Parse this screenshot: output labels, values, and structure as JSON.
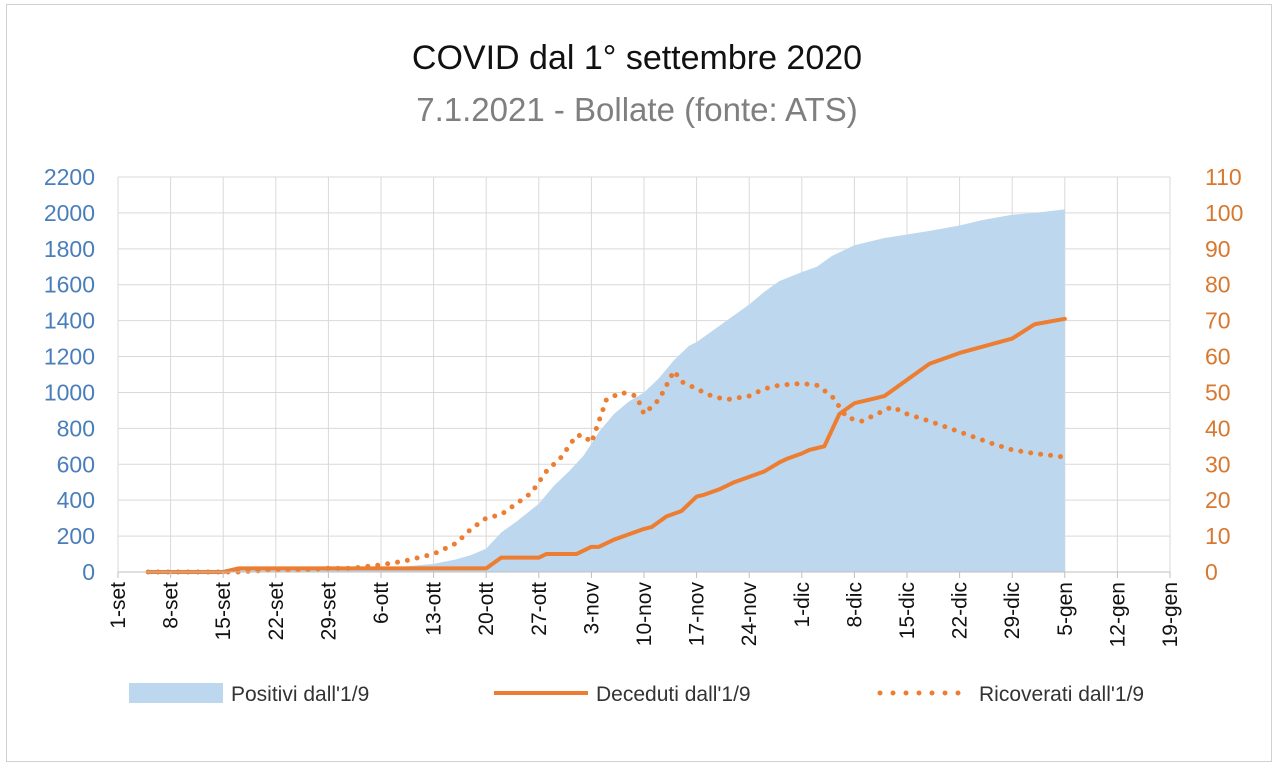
{
  "chart_data": {
    "type": "area",
    "title": "COVID dal 1° settembre 2020",
    "subtitle": "7.1.2021 - Bollate (fonte: ATS)",
    "x_unit": "days since 1-set",
    "xlim": [
      0,
      140
    ],
    "x_tick_positions": [
      0,
      7,
      14,
      21,
      28,
      35,
      42,
      49,
      56,
      63,
      70,
      77,
      84,
      91,
      98,
      105,
      112,
      119,
      126,
      133,
      140
    ],
    "x_tick_labels": [
      "1-set",
      "8-set",
      "15-set",
      "22-set",
      "29-set",
      "6-ott",
      "13-ott",
      "20-ott",
      "27-ott",
      "3-nov",
      "10-nov",
      "17-nov",
      "24-nov",
      "1-dic",
      "8-dic",
      "15-dic",
      "22-dic",
      "29-dic",
      "5-gen",
      "12-gen",
      "19-gen"
    ],
    "y_left": {
      "min": 0,
      "max": 2200,
      "step": 200,
      "ticks": [
        "0",
        "200",
        "400",
        "600",
        "800",
        "1000",
        "1200",
        "1400",
        "1600",
        "1800",
        "2000",
        "2200"
      ]
    },
    "y_right": {
      "min": 0,
      "max": 110,
      "step": 10,
      "ticks": [
        "0",
        "10",
        "20",
        "30",
        "40",
        "50",
        "60",
        "70",
        "80",
        "90",
        "100",
        "110"
      ]
    },
    "grid": true,
    "legend_position": "bottom",
    "series": [
      {
        "name": "Positivi dall'1/9",
        "type": "area",
        "axis": "left",
        "color": "#bdd7ee",
        "x": [
          4,
          7,
          10,
          14,
          17,
          21,
          24,
          28,
          31,
          35,
          38,
          42,
          45,
          47,
          49,
          51,
          53,
          56,
          58,
          60,
          62,
          64,
          66,
          68,
          70,
          72,
          74,
          76,
          77,
          79,
          81,
          84,
          86,
          88,
          91,
          93,
          95,
          98,
          100,
          102,
          105,
          108,
          112,
          115,
          119,
          122,
          126
        ],
        "y": [
          0,
          3,
          5,
          8,
          10,
          12,
          14,
          17,
          20,
          24,
          30,
          45,
          70,
          95,
          130,
          220,
          280,
          380,
          480,
          560,
          650,
          780,
          880,
          950,
          1000,
          1080,
          1180,
          1260,
          1280,
          1340,
          1400,
          1490,
          1560,
          1620,
          1670,
          1700,
          1760,
          1820,
          1840,
          1860,
          1880,
          1900,
          1930,
          1960,
          1990,
          2000,
          2020
        ]
      },
      {
        "name": "Deceduti dall'1/9",
        "type": "line",
        "axis": "right",
        "color": "#ed7d31",
        "x": [
          4,
          14,
          16,
          49,
          51,
          56,
          57,
          59,
          61,
          63,
          64,
          66,
          68,
          70,
          71,
          73,
          75,
          77,
          78,
          80,
          82,
          84,
          86,
          88,
          89,
          91,
          92,
          94,
          96,
          98,
          100,
          102,
          104,
          106,
          108,
          112,
          119,
          122,
          126
        ],
        "y": [
          0,
          0,
          1,
          1,
          4,
          4,
          5,
          5,
          5,
          7,
          7,
          9,
          10.5,
          12,
          12.5,
          15.5,
          17,
          21,
          21.5,
          23,
          25,
          26.5,
          28,
          30.5,
          31.5,
          33,
          34,
          35,
          44,
          47,
          48,
          49,
          52,
          55,
          58,
          61,
          65,
          69,
          70.5
        ]
      },
      {
        "name": "Ricoverati dall'1/9",
        "type": "line-dotted",
        "axis": "right",
        "color": "#ed7d31",
        "x": [
          4,
          8,
          12,
          16,
          20,
          24,
          28,
          31,
          35,
          38,
          42,
          45,
          47,
          49,
          51,
          53,
          55,
          57,
          59,
          61,
          62,
          63,
          64,
          65,
          67,
          69,
          70,
          72,
          74,
          75,
          77,
          79,
          81,
          84,
          86,
          88,
          91,
          93,
          95,
          97,
          99,
          101,
          103,
          105,
          108,
          112,
          116,
          119,
          122,
          126
        ],
        "y": [
          0,
          0,
          0,
          0,
          0.5,
          0.5,
          1,
          1,
          2,
          3,
          5,
          8,
          12,
          15,
          16,
          19,
          22,
          28,
          32,
          38,
          38,
          36,
          42,
          48,
          50,
          49,
          44,
          48,
          56,
          53,
          51,
          49,
          48,
          49,
          51,
          52,
          52.5,
          52,
          49,
          43,
          42,
          44,
          46,
          44,
          42,
          39,
          36,
          34,
          33,
          32
        ]
      }
    ]
  }
}
